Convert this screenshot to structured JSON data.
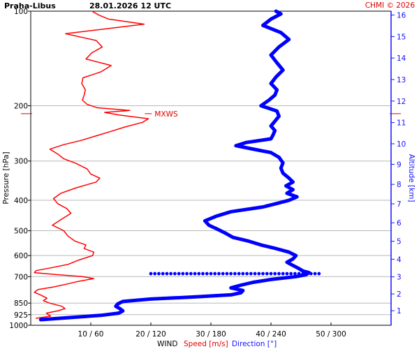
{
  "header": {
    "station": "Praha-Libus",
    "datetime": "28.01.2026 12 UTC",
    "credit": "CHMI © 2026"
  },
  "chart_data": {
    "type": "line",
    "left_axis": {
      "label": "Pressure [hPa]",
      "scale": "log",
      "ticks": [
        100,
        200,
        300,
        400,
        500,
        600,
        700,
        850,
        925,
        1000
      ],
      "range": [
        100,
        1000
      ]
    },
    "right_axis": {
      "label": "Altitude [km]",
      "ticks": [
        1,
        2,
        3,
        4,
        5,
        6,
        7,
        8,
        9,
        10,
        11,
        12,
        13,
        14,
        15,
        16
      ]
    },
    "bottom_axis": {
      "title": "WIND",
      "speed_label": "Speed [m/s]",
      "direction_label": "Direction [°]",
      "tick_labels": [
        "10 / 60",
        "20 / 120",
        "30 / 180",
        "40 / 240",
        "50 / 300"
      ],
      "speed_range": [
        0,
        60
      ],
      "direction_range": [
        0,
        360
      ]
    },
    "annotation": {
      "text": "MXWS",
      "pressure": 212,
      "speed": 19
    },
    "series": [
      {
        "name": "Speed [m/s]",
        "unit": "m/s",
        "color": "#ff0000",
        "points": [
          [
            950,
            0.9
          ],
          [
            935,
            3.3
          ],
          [
            915,
            2.6
          ],
          [
            900,
            4.5
          ],
          [
            885,
            5.7
          ],
          [
            870,
            5.2
          ],
          [
            850,
            3.1
          ],
          [
            835,
            2.1
          ],
          [
            820,
            2.7
          ],
          [
            800,
            1.6
          ],
          [
            785,
            0.6
          ],
          [
            770,
            1.2
          ],
          [
            755,
            3.8
          ],
          [
            740,
            5.9
          ],
          [
            725,
            7.9
          ],
          [
            710,
            10.5
          ],
          [
            700,
            8.6
          ],
          [
            690,
            4.4
          ],
          [
            680,
            0.6
          ],
          [
            670,
            0.9
          ],
          [
            655,
            3.6
          ],
          [
            640,
            6.2
          ],
          [
            620,
            8.0
          ],
          [
            600,
            10.3
          ],
          [
            585,
            10.5
          ],
          [
            570,
            8.9
          ],
          [
            555,
            9.2
          ],
          [
            540,
            7.4
          ],
          [
            520,
            6.2
          ],
          [
            500,
            5.5
          ],
          [
            480,
            3.6
          ],
          [
            460,
            5.1
          ],
          [
            440,
            6.7
          ],
          [
            425,
            6.0
          ],
          [
            410,
            4.5
          ],
          [
            395,
            3.8
          ],
          [
            380,
            5.0
          ],
          [
            365,
            7.6
          ],
          [
            350,
            10.9
          ],
          [
            340,
            11.5
          ],
          [
            330,
            10.0
          ],
          [
            318,
            9.4
          ],
          [
            305,
            7.5
          ],
          [
            295,
            5.5
          ],
          [
            285,
            4.5
          ],
          [
            275,
            3.2
          ],
          [
            266,
            5.5
          ],
          [
            258,
            8.4
          ],
          [
            250,
            10.7
          ],
          [
            242,
            13.2
          ],
          [
            234,
            15.6
          ],
          [
            226,
            18.6
          ],
          [
            220,
            19.6
          ],
          [
            214,
            14.7
          ],
          [
            210,
            12.3
          ],
          [
            207,
            16.5
          ],
          [
            203,
            11.1
          ],
          [
            198,
            9.4
          ],
          [
            192,
            8.6
          ],
          [
            185,
            8.9
          ],
          [
            178,
            9.1
          ],
          [
            170,
            8.5
          ],
          [
            163,
            8.7
          ],
          [
            156,
            11.7
          ],
          [
            149,
            13.4
          ],
          [
            142,
            9.2
          ],
          [
            136,
            10.1
          ],
          [
            130,
            11.9
          ],
          [
            124,
            10.9
          ],
          [
            118,
            5.8
          ],
          [
            114,
            12.2
          ],
          [
            110,
            18.9
          ],
          [
            106,
            13.0
          ],
          [
            103,
            11.4
          ],
          [
            100,
            10.2
          ]
        ]
      },
      {
        "name": "Direction [°]",
        "unit": "°",
        "color": "#0000ff",
        "points": [
          [
            960,
            10
          ],
          [
            945,
            40
          ],
          [
            930,
            70
          ],
          [
            915,
            88
          ],
          [
            900,
            92
          ],
          [
            885,
            89
          ],
          [
            870,
            85
          ],
          [
            855,
            87
          ],
          [
            840,
            92
          ],
          [
            825,
            120
          ],
          [
            812,
            165
          ],
          [
            800,
            200
          ],
          [
            788,
            210
          ],
          [
            775,
            212
          ],
          [
            760,
            200
          ],
          [
            745,
            210
          ],
          [
            730,
            222
          ],
          [
            715,
            240
          ],
          [
            700,
            265
          ],
          [
            690,
            275
          ],
          [
            680,
            278
          ],
          [
            672,
            272
          ],
          [
            660,
            268
          ],
          [
            645,
            262
          ],
          [
            630,
            256
          ],
          [
            615,
            262
          ],
          [
            600,
            265
          ],
          [
            585,
            258
          ],
          [
            570,
            245
          ],
          [
            555,
            230
          ],
          [
            540,
            218
          ],
          [
            525,
            202
          ],
          [
            510,
            195
          ],
          [
            495,
            187
          ],
          [
            480,
            178
          ],
          [
            465,
            174
          ],
          [
            450,
            185
          ],
          [
            435,
            200
          ],
          [
            420,
            232
          ],
          [
            410,
            245
          ],
          [
            400,
            258
          ],
          [
            390,
            266
          ],
          [
            380,
            256
          ],
          [
            370,
            262
          ],
          [
            360,
            255
          ],
          [
            350,
            262
          ],
          [
            340,
            258
          ],
          [
            328,
            252
          ],
          [
            316,
            250
          ],
          [
            304,
            252
          ],
          [
            292,
            248
          ],
          [
            282,
            240
          ],
          [
            274,
            220
          ],
          [
            268,
            205
          ],
          [
            262,
            215
          ],
          [
            255,
            240
          ],
          [
            248,
            242
          ],
          [
            240,
            244
          ],
          [
            232,
            240
          ],
          [
            224,
            244
          ],
          [
            216,
            248
          ],
          [
            208,
            246
          ],
          [
            200,
            230
          ],
          [
            192,
            238
          ],
          [
            185,
            244
          ],
          [
            178,
            246
          ],
          [
            170,
            240
          ],
          [
            162,
            245
          ],
          [
            154,
            252
          ],
          [
            146,
            246
          ],
          [
            138,
            240
          ],
          [
            130,
            248
          ],
          [
            123,
            258
          ],
          [
            117,
            250
          ],
          [
            111,
            232
          ],
          [
            106,
            240
          ],
          [
            102,
            250
          ],
          [
            100,
            245
          ]
        ]
      }
    ],
    "jump_segment": {
      "pressure": 685,
      "direction_from": 120,
      "direction_to": 288
    }
  }
}
